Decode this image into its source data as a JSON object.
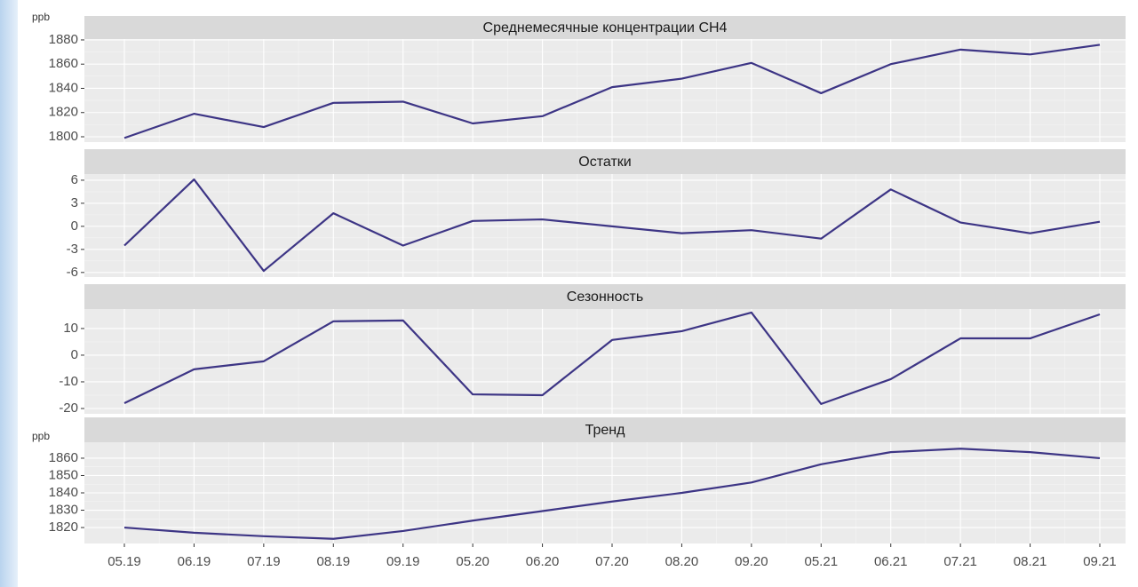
{
  "chart_data": {
    "type": "line",
    "color": "#3d3585",
    "grid": true,
    "categories": [
      "05.19",
      "06.19",
      "07.19",
      "08.19",
      "09.19",
      "05.20",
      "06.20",
      "07.20",
      "08.20",
      "09.20",
      "05.21",
      "06.21",
      "07.21",
      "08.21",
      "09.21"
    ],
    "panels": [
      {
        "title": "Среднемесячные концентрации CH4",
        "y_label": "ppb",
        "values": [
          1799,
          1819,
          1808,
          1828,
          1829,
          1811,
          1817,
          1841,
          1848,
          1861,
          1836,
          1860,
          1872,
          1868,
          1876
        ],
        "ylim": [
          1795.6,
          1880.7
        ],
        "yticks": [
          1800,
          1820,
          1840,
          1860,
          1880
        ]
      },
      {
        "title": "Остатки",
        "values": [
          -2.5,
          6.1,
          -5.8,
          1.7,
          -2.5,
          0.7,
          0.9,
          0,
          -0.9,
          -0.5,
          -1.6,
          4.8,
          0.5,
          -0.9,
          0.6
        ],
        "ylim": [
          -6.6,
          6.8
        ],
        "yticks": [
          -6,
          -3,
          0,
          3,
          6
        ]
      },
      {
        "title": "Сезонность",
        "values": [
          -18,
          -5.3,
          -2.3,
          12.7,
          13,
          -14.7,
          -15,
          5.7,
          9,
          16,
          -18.3,
          -9,
          6.3,
          6.3,
          15.3
        ],
        "ylim": [
          -22,
          17.3
        ],
        "yticks": [
          -20,
          -10,
          0,
          10
        ]
      },
      {
        "title": "Тренд",
        "y_label": "ppb",
        "values": [
          1820,
          1817,
          1815,
          1813.5,
          1818,
          1824,
          1829.5,
          1835,
          1840,
          1846,
          1856.5,
          1863.5,
          1865.5,
          1863.5,
          1860
        ],
        "ylim": [
          1810.8,
          1869.2
        ],
        "yticks": [
          1820,
          1830,
          1840,
          1850,
          1860
        ]
      }
    ]
  }
}
